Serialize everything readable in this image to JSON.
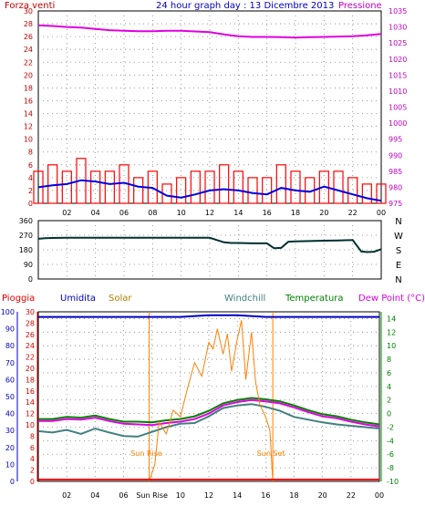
{
  "chart_data": [
    {
      "type": "line",
      "id": "wind-pressure",
      "title": "24 hour graph day : 13 Dicembre 2013",
      "left_axis_label": "Forza venti",
      "right_axis_label": "Pressione",
      "left_ticks": [
        "30",
        "28",
        "26",
        "24",
        "22",
        "20",
        "18",
        "16",
        "14",
        "12",
        "10",
        "8",
        "6",
        "4",
        "2",
        "0"
      ],
      "left_ylim": [
        0,
        30
      ],
      "right_ticks": [
        "1035",
        "1030",
        "1025",
        "1020",
        "1015",
        "1010",
        "1005",
        "1000",
        "995",
        "990",
        "985",
        "980",
        "975"
      ],
      "right_ylim": [
        975,
        1035
      ],
      "x_ticks": [
        "02",
        "04",
        "06",
        "08",
        "10",
        "12",
        "14",
        "16",
        "18",
        "20",
        "22",
        "00"
      ],
      "series": [
        {
          "color": "#e000e0",
          "axis": "right",
          "x": [
            0,
            1,
            2,
            3,
            4,
            5,
            6,
            7,
            8,
            9,
            10,
            11,
            12,
            13,
            14,
            15,
            16,
            17,
            18,
            19,
            20,
            21,
            22,
            23,
            24
          ],
          "values": [
            1030.5,
            1030.3,
            1030.0,
            1029.8,
            1029.4,
            1029.0,
            1028.8,
            1028.7,
            1028.7,
            1028.8,
            1028.8,
            1028.6,
            1028.4,
            1027.7,
            1027.1,
            1026.9,
            1026.9,
            1026.8,
            1026.7,
            1026.8,
            1026.9,
            1027.0,
            1027.1,
            1027.4,
            1027.8
          ]
        },
        {
          "color": "#ff0000",
          "axis": "left",
          "kind": "gust",
          "x": [
            0,
            1,
            2,
            3,
            4,
            5,
            6,
            7,
            8,
            9,
            10,
            11,
            12,
            13,
            14,
            15,
            16,
            17,
            18,
            19,
            20,
            21,
            22,
            23,
            24
          ],
          "values": [
            5,
            6,
            5,
            7,
            5,
            5,
            6,
            4,
            5,
            3,
            4,
            5,
            5,
            6,
            5,
            4,
            4,
            6,
            5,
            4,
            5,
            5,
            4,
            3,
            3
          ]
        },
        {
          "color": "#0000e0",
          "axis": "left",
          "x": [
            0,
            1,
            2,
            3,
            4,
            5,
            6,
            7,
            8,
            9,
            10,
            11,
            12,
            13,
            14,
            15,
            16,
            17,
            18,
            19,
            20,
            21,
            22,
            23,
            24
          ],
          "values": [
            2.5,
            2.8,
            3.0,
            3.6,
            3.4,
            3.0,
            3.2,
            2.6,
            2.4,
            1.2,
            0.9,
            1.4,
            2.0,
            2.2,
            2.0,
            1.6,
            1.4,
            2.4,
            2.0,
            1.8,
            2.6,
            2.0,
            1.4,
            0.8,
            0.4
          ]
        }
      ]
    },
    {
      "type": "line",
      "id": "wind-direction",
      "left_ticks": [
        "360",
        "270",
        "180",
        "90",
        "0"
      ],
      "ylim": [
        0,
        360
      ],
      "right_ticks": [
        "N",
        "W",
        "S",
        "E",
        "N"
      ],
      "series": [
        {
          "color": "#003030",
          "x": [
            0,
            0.5,
            1,
            2,
            3,
            4,
            5,
            6,
            7,
            8,
            9,
            10,
            11,
            12,
            12.5,
            13,
            13.5,
            14,
            15,
            16,
            16.5,
            17,
            17.5,
            18,
            19,
            20,
            21,
            22,
            22.6,
            23,
            23.5,
            24
          ],
          "values": [
            248,
            252,
            253,
            254,
            254,
            254,
            254,
            254,
            254,
            254,
            254,
            254,
            254,
            254,
            240,
            226,
            222,
            222,
            220,
            220,
            190,
            192,
            230,
            232,
            234,
            236,
            238,
            240,
            170,
            166,
            168,
            184
          ]
        }
      ]
    },
    {
      "type": "line",
      "id": "temperature-humidity",
      "left_axis_label": "Pioggia",
      "legend": [
        "Umidita",
        "Solar",
        "Windchill",
        "Temperatura",
        "Dew Point (°C)"
      ],
      "left_ticks_outer": [
        "100",
        "90",
        "80",
        "70",
        "60",
        "50",
        "40",
        "30",
        "20",
        "10",
        "0"
      ],
      "left_ticks_inner": [
        "30",
        "28",
        "26",
        "24",
        "22",
        "20",
        "18",
        "16",
        "14",
        "12",
        "10",
        "8",
        "6",
        "4",
        "2",
        "0"
      ],
      "right_ticks": [
        "14",
        "12",
        "10",
        "8",
        "6",
        "4",
        "2",
        "0",
        "-2",
        "-4",
        "-6",
        "-8",
        "-10"
      ],
      "temp_ylim": [
        -10,
        15
      ],
      "humidity_ylim": [
        0,
        100
      ],
      "x_ticks": [
        "02",
        "04",
        "06",
        "Sun Rise",
        "10",
        "12",
        "14",
        "16",
        "18",
        "20",
        "22",
        "00"
      ],
      "annotations": [
        "Sun Rise",
        "Sun Set"
      ],
      "series": [
        {
          "name": "Umidita",
          "color": "#0000c8",
          "axis": "humidity",
          "x": [
            0,
            2,
            4,
            6,
            8,
            10,
            12,
            14,
            16,
            18,
            20,
            22,
            24
          ],
          "values": [
            97,
            97,
            97,
            97,
            97,
            97,
            98,
            98,
            97,
            97,
            97,
            97,
            97
          ]
        },
        {
          "name": "Temperatura",
          "color": "#008000",
          "axis": "temp",
          "x": [
            0,
            1,
            2,
            3,
            4,
            5,
            6,
            7,
            8,
            9,
            10,
            11,
            12,
            13,
            14,
            15,
            16,
            17,
            18,
            19,
            20,
            21,
            22,
            23,
            24
          ],
          "values": [
            -0.8,
            -0.8,
            -0.5,
            -0.6,
            -0.3,
            -0.8,
            -1.2,
            -1.2,
            -1.3,
            -1.0,
            -0.8,
            -0.4,
            0.4,
            1.5,
            2.0,
            2.3,
            2.1,
            1.8,
            1.2,
            0.5,
            -0.1,
            -0.4,
            -0.9,
            -1.3,
            -1.6
          ]
        },
        {
          "name": "Dew Point (°C)",
          "color": "#e000e0",
          "axis": "temp",
          "x": [
            0,
            1,
            2,
            3,
            4,
            5,
            6,
            7,
            8,
            9,
            10,
            11,
            12,
            13,
            14,
            15,
            16,
            17,
            18,
            19,
            20,
            21,
            22,
            23,
            24
          ],
          "values": [
            -1.1,
            -1.1,
            -0.8,
            -0.9,
            -0.6,
            -1.1,
            -1.5,
            -1.6,
            -1.7,
            -1.4,
            -1.2,
            -0.8,
            0.0,
            1.2,
            1.7,
            2.0,
            1.8,
            1.5,
            0.9,
            0.2,
            -0.4,
            -0.7,
            -1.2,
            -1.6,
            -1.9
          ]
        },
        {
          "name": "Windchill",
          "color": "#408080",
          "axis": "temp",
          "x": [
            0,
            1,
            2,
            3,
            4,
            5,
            6,
            7,
            8,
            9,
            10,
            11,
            12,
            13,
            14,
            15,
            16,
            17,
            18,
            19,
            20,
            21,
            22,
            23,
            24
          ],
          "values": [
            -2.6,
            -2.8,
            -2.4,
            -3.0,
            -2.2,
            -2.8,
            -3.3,
            -3.4,
            -2.7,
            -2.0,
            -1.5,
            -1.4,
            -0.4,
            0.8,
            1.2,
            1.4,
            1.0,
            0.4,
            -0.5,
            -0.9,
            -1.3,
            -1.6,
            -1.8,
            -2.0,
            -2.2
          ]
        },
        {
          "name": "Solar",
          "color": "#ff8000",
          "axis": "humidity",
          "x": [
            7.8,
            8.2,
            8.5,
            9.0,
            9.5,
            10,
            10.5,
            11,
            11.5,
            12,
            12.3,
            12.6,
            13,
            13.3,
            13.6,
            14,
            14.3,
            14.6,
            15,
            15.3,
            15.6,
            16,
            16.3,
            16.5
          ],
          "values": [
            0,
            10,
            35,
            28,
            42,
            38,
            55,
            70,
            62,
            82,
            78,
            90,
            75,
            87,
            65,
            84,
            95,
            60,
            88,
            58,
            45,
            38,
            30,
            0
          ]
        },
        {
          "name": "Pioggia",
          "color": "#ff0000",
          "axis": "rain",
          "x": [
            0,
            24
          ],
          "values": [
            0,
            0
          ]
        }
      ]
    }
  ]
}
